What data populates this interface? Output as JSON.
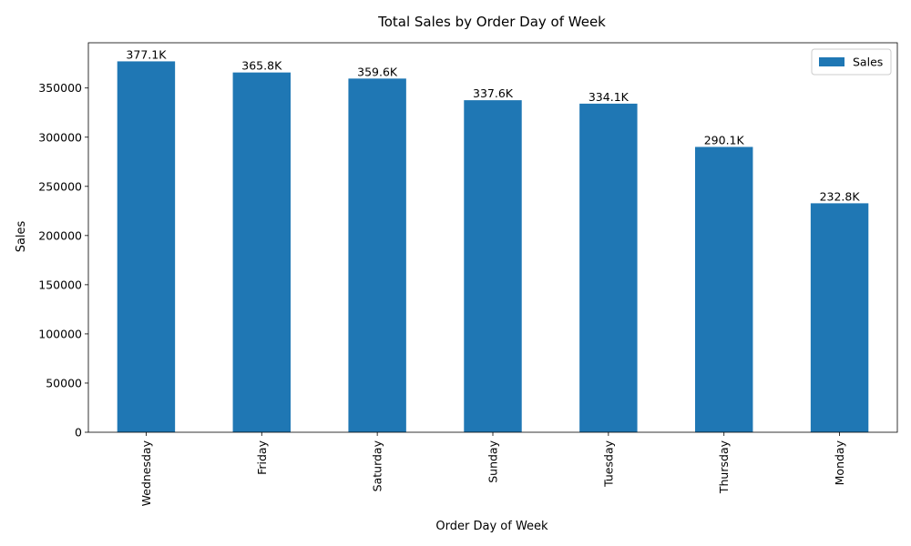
{
  "chart_data": {
    "type": "bar",
    "title": "Total Sales by Order Day of Week",
    "xlabel": "Order Day of Week",
    "ylabel": "Sales",
    "categories": [
      "Wednesday",
      "Friday",
      "Saturday",
      "Sunday",
      "Tuesday",
      "Thursday",
      "Monday"
    ],
    "series": [
      {
        "name": "Sales",
        "values": [
          377100,
          365800,
          359600,
          337600,
          334100,
          290100,
          232800
        ],
        "data_labels": [
          "377.1K",
          "365.8K",
          "359.6K",
          "337.6K",
          "334.1K",
          "290.1K",
          "232.8K"
        ]
      }
    ],
    "ylim": [
      0,
      396000
    ],
    "yticks": [
      0,
      50000,
      100000,
      150000,
      200000,
      250000,
      300000,
      350000
    ],
    "grid": false,
    "legend_position": "top-right",
    "colors": {
      "bar": "#1f77b4"
    }
  }
}
